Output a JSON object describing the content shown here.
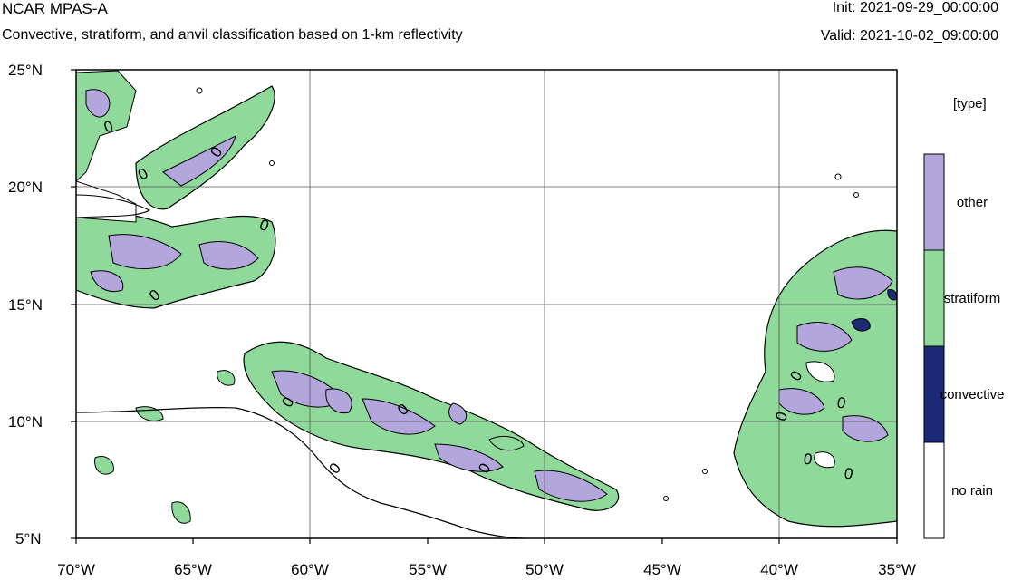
{
  "header": {
    "title": "NCAR MPAS-A",
    "subtitle": "Convective, stratiform, and anvil classification based on 1-km reflectivity",
    "init": "Init: 2021-09-29_00:00:00",
    "valid": "Valid: 2021-10-02_09:00:00"
  },
  "axes": {
    "lat_labels": [
      "25°N",
      "20°N",
      "15°N",
      "10°N",
      "5°N"
    ],
    "lon_labels": [
      "70°W",
      "65°W",
      "60°W",
      "55°W",
      "50°W",
      "45°W",
      "40°W",
      "35°W"
    ]
  },
  "legend": {
    "title": "[type]",
    "items": [
      {
        "label": "other",
        "color": "#b3a6dc"
      },
      {
        "label": "stratiform",
        "color": "#8fd99a"
      },
      {
        "label": "convective",
        "color": "#1b2a78"
      },
      {
        "label": "no rain",
        "color": "#ffffff"
      }
    ]
  },
  "contour_label": "0",
  "colors": {
    "stratiform": "#8fd99a",
    "other": "#b3a6dc",
    "convective": "#1b2a78",
    "line": "#000000",
    "grid": "#555555"
  }
}
